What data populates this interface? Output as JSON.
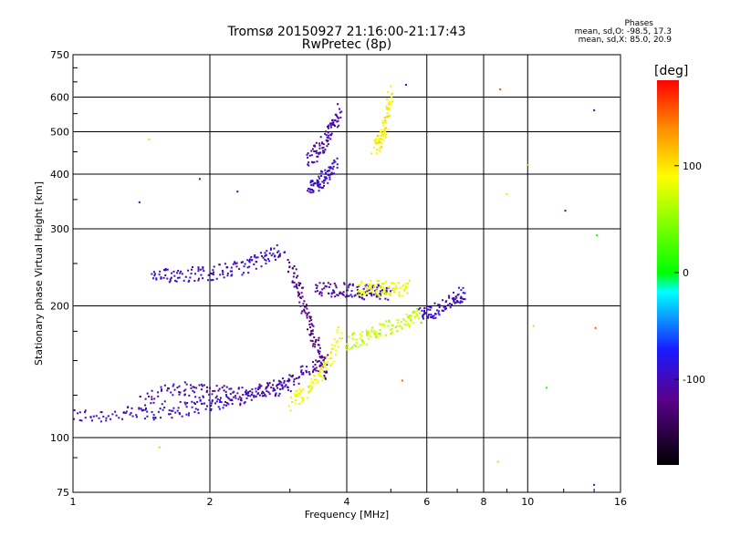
{
  "chart_data": {
    "type": "scatter",
    "title": "Tromsø 20150927 21:16:00-21:17:43",
    "subtitle": "RwPretec (8p)",
    "xlabel": "Frequency [MHz]",
    "ylabel": "Stationary phase Virtual Height [km]",
    "x_scale": "log",
    "y_scale": "log",
    "xlim": [
      1,
      16
    ],
    "ylim": [
      75,
      750
    ],
    "x_ticks": [
      1,
      2,
      4,
      6,
      8,
      10,
      16
    ],
    "x_tick_labels": [
      "1",
      "2",
      "4",
      "6",
      "8",
      "10",
      "16"
    ],
    "y_ticks": [
      75,
      100,
      200,
      300,
      400,
      500,
      600,
      750
    ],
    "y_tick_labels": [
      "75",
      "100",
      "200",
      "300",
      "400",
      "500",
      "600",
      "750"
    ],
    "grid": true,
    "colorbar": {
      "label": "[deg]",
      "range": [
        -180,
        180
      ],
      "ticks": [
        100,
        0,
        -100
      ],
      "tick_labels": [
        "100",
        "0",
        "-100"
      ]
    },
    "stats": {
      "heading": "Phases",
      "line_o": "mean, sd,O: -98.5, 17.3",
      "line_x": "mean, sd,X: 85.0, 20.9"
    },
    "traces": [
      {
        "x": [
          1.0,
          1.3,
          1.6,
          1.9,
          2.2,
          2.6,
          3.0
        ],
        "y": [
          112,
          113,
          115,
          118,
          122,
          127,
          132
        ],
        "phase": -100
      },
      {
        "x": [
          1.4,
          1.7,
          2.0,
          2.4,
          2.8,
          3.2,
          3.6
        ],
        "y": [
          120,
          130,
          128,
          126,
          130,
          140,
          150
        ],
        "phase": -110
      },
      {
        "x": [
          1.5,
          1.7,
          2.0,
          2.3,
          2.6,
          2.9
        ],
        "y": [
          232,
          236,
          238,
          243,
          255,
          270
        ],
        "phase": -100
      },
      {
        "x": [
          3.0,
          3.15,
          3.3,
          3.45,
          3.6
        ],
        "y": [
          250,
          215,
          185,
          160,
          140
        ],
        "phase": -120
      },
      {
        "x": [
          3.3,
          3.45,
          3.6,
          3.8
        ],
        "y": [
          370,
          380,
          395,
          420
        ],
        "phase": -100
      },
      {
        "x": [
          3.3,
          3.5,
          3.7,
          3.85
        ],
        "y": [
          430,
          460,
          500,
          560
        ],
        "phase": -110
      },
      {
        "x": [
          3.0,
          3.3,
          3.6,
          3.9
        ],
        "y": [
          120,
          128,
          145,
          175
        ],
        "phase": 90
      },
      {
        "x": [
          4.6,
          4.75,
          4.9,
          5.0
        ],
        "y": [
          455,
          480,
          530,
          620
        ],
        "phase": 95
      },
      {
        "x": [
          3.4,
          3.8,
          4.2,
          4.6,
          5.0
        ],
        "y": [
          218,
          218,
          216,
          215,
          214
        ],
        "phase": -110
      },
      {
        "x": [
          4.2,
          4.6,
          5.0,
          5.5
        ],
        "y": [
          220,
          220,
          218,
          220
        ],
        "phase": 80
      },
      {
        "x": [
          5.8,
          6.2,
          6.8,
          7.3
        ],
        "y": [
          190,
          195,
          205,
          215
        ],
        "phase": -100
      },
      {
        "x": [
          4.0,
          4.4,
          4.8,
          5.4,
          5.8
        ],
        "y": [
          165,
          170,
          178,
          185,
          190
        ],
        "phase": 70
      }
    ],
    "isolated_points": [
      {
        "x": 1.4,
        "y": 345,
        "phase": -110
      },
      {
        "x": 1.47,
        "y": 480,
        "phase": 60
      },
      {
        "x": 1.55,
        "y": 95,
        "phase": 110
      },
      {
        "x": 1.9,
        "y": 390,
        "phase": -100
      },
      {
        "x": 2.3,
        "y": 365,
        "phase": -110
      },
      {
        "x": 5.4,
        "y": 640,
        "phase": -120
      },
      {
        "x": 8.7,
        "y": 625,
        "phase": 150
      },
      {
        "x": 9.0,
        "y": 360,
        "phase": 100
      },
      {
        "x": 10.0,
        "y": 420,
        "phase": 40
      },
      {
        "x": 11.0,
        "y": 130,
        "phase": 10
      },
      {
        "x": 12.1,
        "y": 330,
        "phase": -120
      },
      {
        "x": 14.0,
        "y": 560,
        "phase": -100
      },
      {
        "x": 14.2,
        "y": 290,
        "phase": 10
      },
      {
        "x": 14.1,
        "y": 178,
        "phase": 150
      },
      {
        "x": 14.0,
        "y": 78,
        "phase": -100
      },
      {
        "x": 8.6,
        "y": 88,
        "phase": 110
      },
      {
        "x": 5.3,
        "y": 135,
        "phase": 150
      },
      {
        "x": 10.3,
        "y": 180,
        "phase": 60
      }
    ]
  }
}
